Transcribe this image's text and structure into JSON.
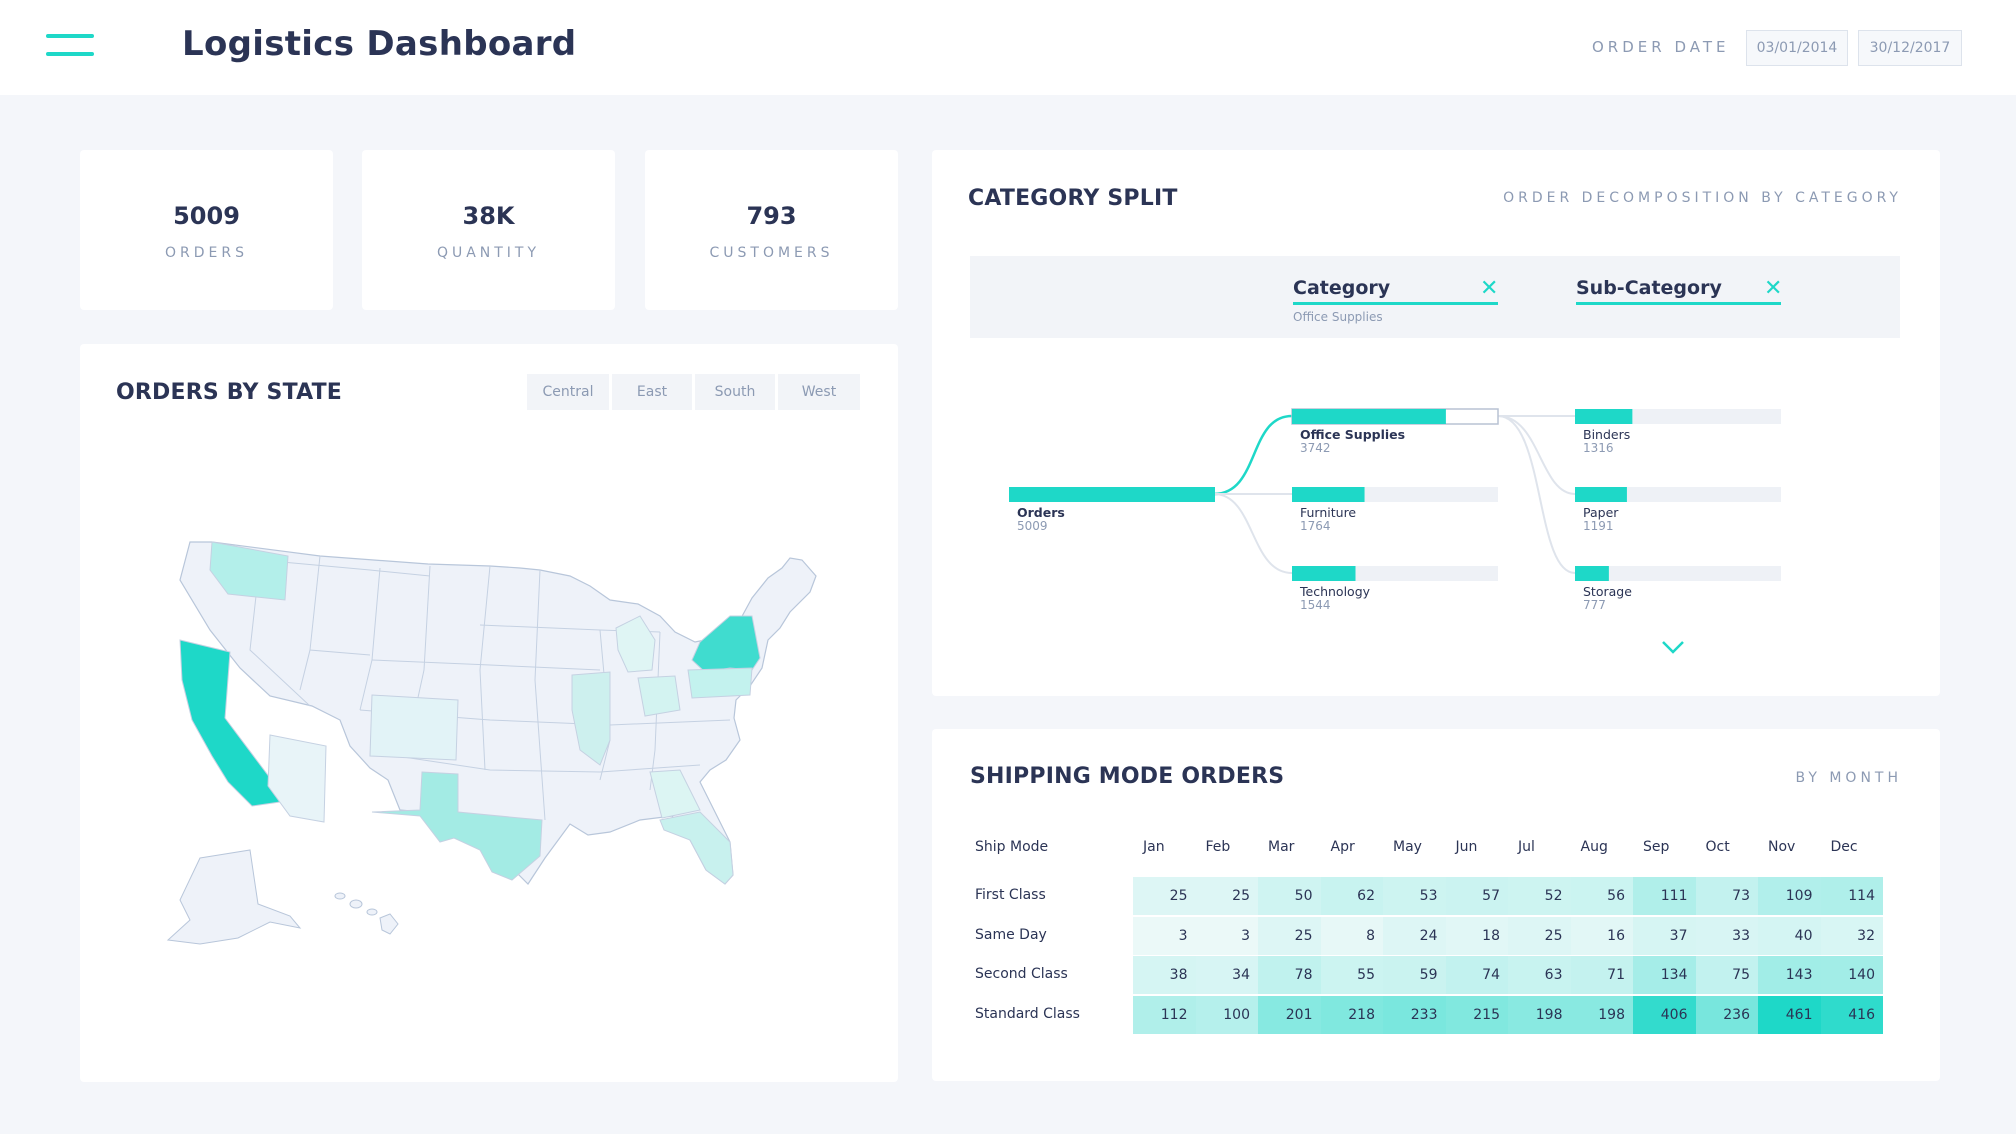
{
  "header": {
    "title": "Logistics Dashboard",
    "date_label": "ORDER DATE",
    "date_from": "03/01/2014",
    "date_to": "30/12/2017"
  },
  "kpis": [
    {
      "value": "5009",
      "label": "ORDERS"
    },
    {
      "value": "38K",
      "label": "QUANTITY"
    },
    {
      "value": "793",
      "label": "CUSTOMERS"
    }
  ],
  "map": {
    "title": "ORDERS BY STATE",
    "regions": [
      "Central",
      "East",
      "South",
      "West"
    ]
  },
  "category_split": {
    "title": "CATEGORY SPLIT",
    "subtitle": "ORDER DECOMPOSITION BY CATEGORY",
    "levels": [
      {
        "title": "Category",
        "selected": "Office Supplies"
      },
      {
        "title": "Sub-Category",
        "selected": ""
      }
    ],
    "root": {
      "label": "Orders",
      "value": 5009
    },
    "categories": [
      {
        "label": "Office Supplies",
        "value": 3742
      },
      {
        "label": "Furniture",
        "value": 1764
      },
      {
        "label": "Technology",
        "value": 1544
      }
    ],
    "subcategories": [
      {
        "label": "Binders",
        "value": 1316
      },
      {
        "label": "Paper",
        "value": 1191
      },
      {
        "label": "Storage",
        "value": 777
      }
    ]
  },
  "shipping": {
    "title": "SHIPPING MODE ORDERS",
    "subtitle": "BY MONTH",
    "row_header": "Ship Mode",
    "months": [
      "Jan",
      "Feb",
      "Mar",
      "Apr",
      "May",
      "Jun",
      "Jul",
      "Aug",
      "Sep",
      "Oct",
      "Nov",
      "Dec"
    ],
    "rows": [
      {
        "mode": "First Class",
        "values": [
          25,
          25,
          50,
          62,
          53,
          57,
          52,
          56,
          111,
          73,
          109,
          114
        ]
      },
      {
        "mode": "Same Day",
        "values": [
          3,
          3,
          25,
          8,
          24,
          18,
          25,
          16,
          37,
          33,
          40,
          32
        ]
      },
      {
        "mode": "Second Class",
        "values": [
          38,
          34,
          78,
          55,
          59,
          74,
          63,
          71,
          134,
          75,
          143,
          140
        ]
      },
      {
        "mode": "Standard Class",
        "values": [
          112,
          100,
          201,
          218,
          233,
          215,
          198,
          198,
          406,
          236,
          461,
          416
        ]
      }
    ]
  },
  "colors": {
    "accent": "#1ed8c8",
    "text": "#2b3455",
    "muted": "#8c9ab3",
    "background": "#f4f6fa"
  }
}
